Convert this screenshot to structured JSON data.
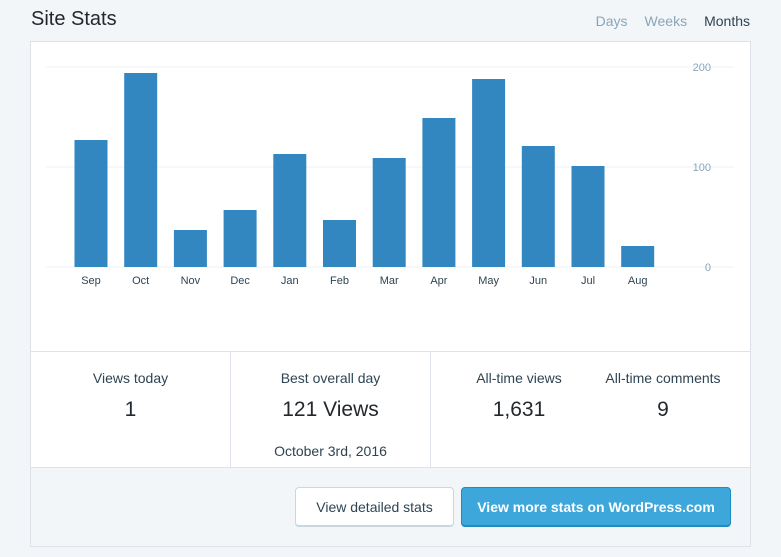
{
  "header": {
    "title": "Site Stats",
    "tabs": [
      {
        "label": "Days",
        "active": false
      },
      {
        "label": "Weeks",
        "active": false
      },
      {
        "label": "Months",
        "active": true
      }
    ]
  },
  "colors": {
    "bar": "#3287c1",
    "gridline": "#eef1f3",
    "axis_label": "#87a6bc",
    "primary_button": "#3da7dc"
  },
  "chart_data": {
    "type": "bar",
    "categories": [
      "Sep",
      "Oct",
      "Nov",
      "Dec",
      "Jan",
      "Feb",
      "Mar",
      "Apr",
      "May",
      "Jun",
      "Jul",
      "Aug"
    ],
    "values": [
      127,
      194,
      37,
      57,
      113,
      47,
      109,
      149,
      188,
      121,
      101,
      21
    ],
    "ylim": [
      0,
      200
    ],
    "yticks": [
      "0",
      "100",
      "200"
    ],
    "grid": true,
    "y_axis_side": "right"
  },
  "stats": [
    {
      "label": "Views today",
      "value": "1"
    },
    {
      "label": "Best overall day",
      "value": "121 Views",
      "sub": "October 3rd, 2016"
    },
    {
      "label": "All-time views",
      "value": "1,631"
    },
    {
      "label": "All-time comments",
      "value": "9"
    }
  ],
  "footer": {
    "detailed_label": "View detailed stats",
    "more_label": "View more stats on WordPress.com"
  }
}
